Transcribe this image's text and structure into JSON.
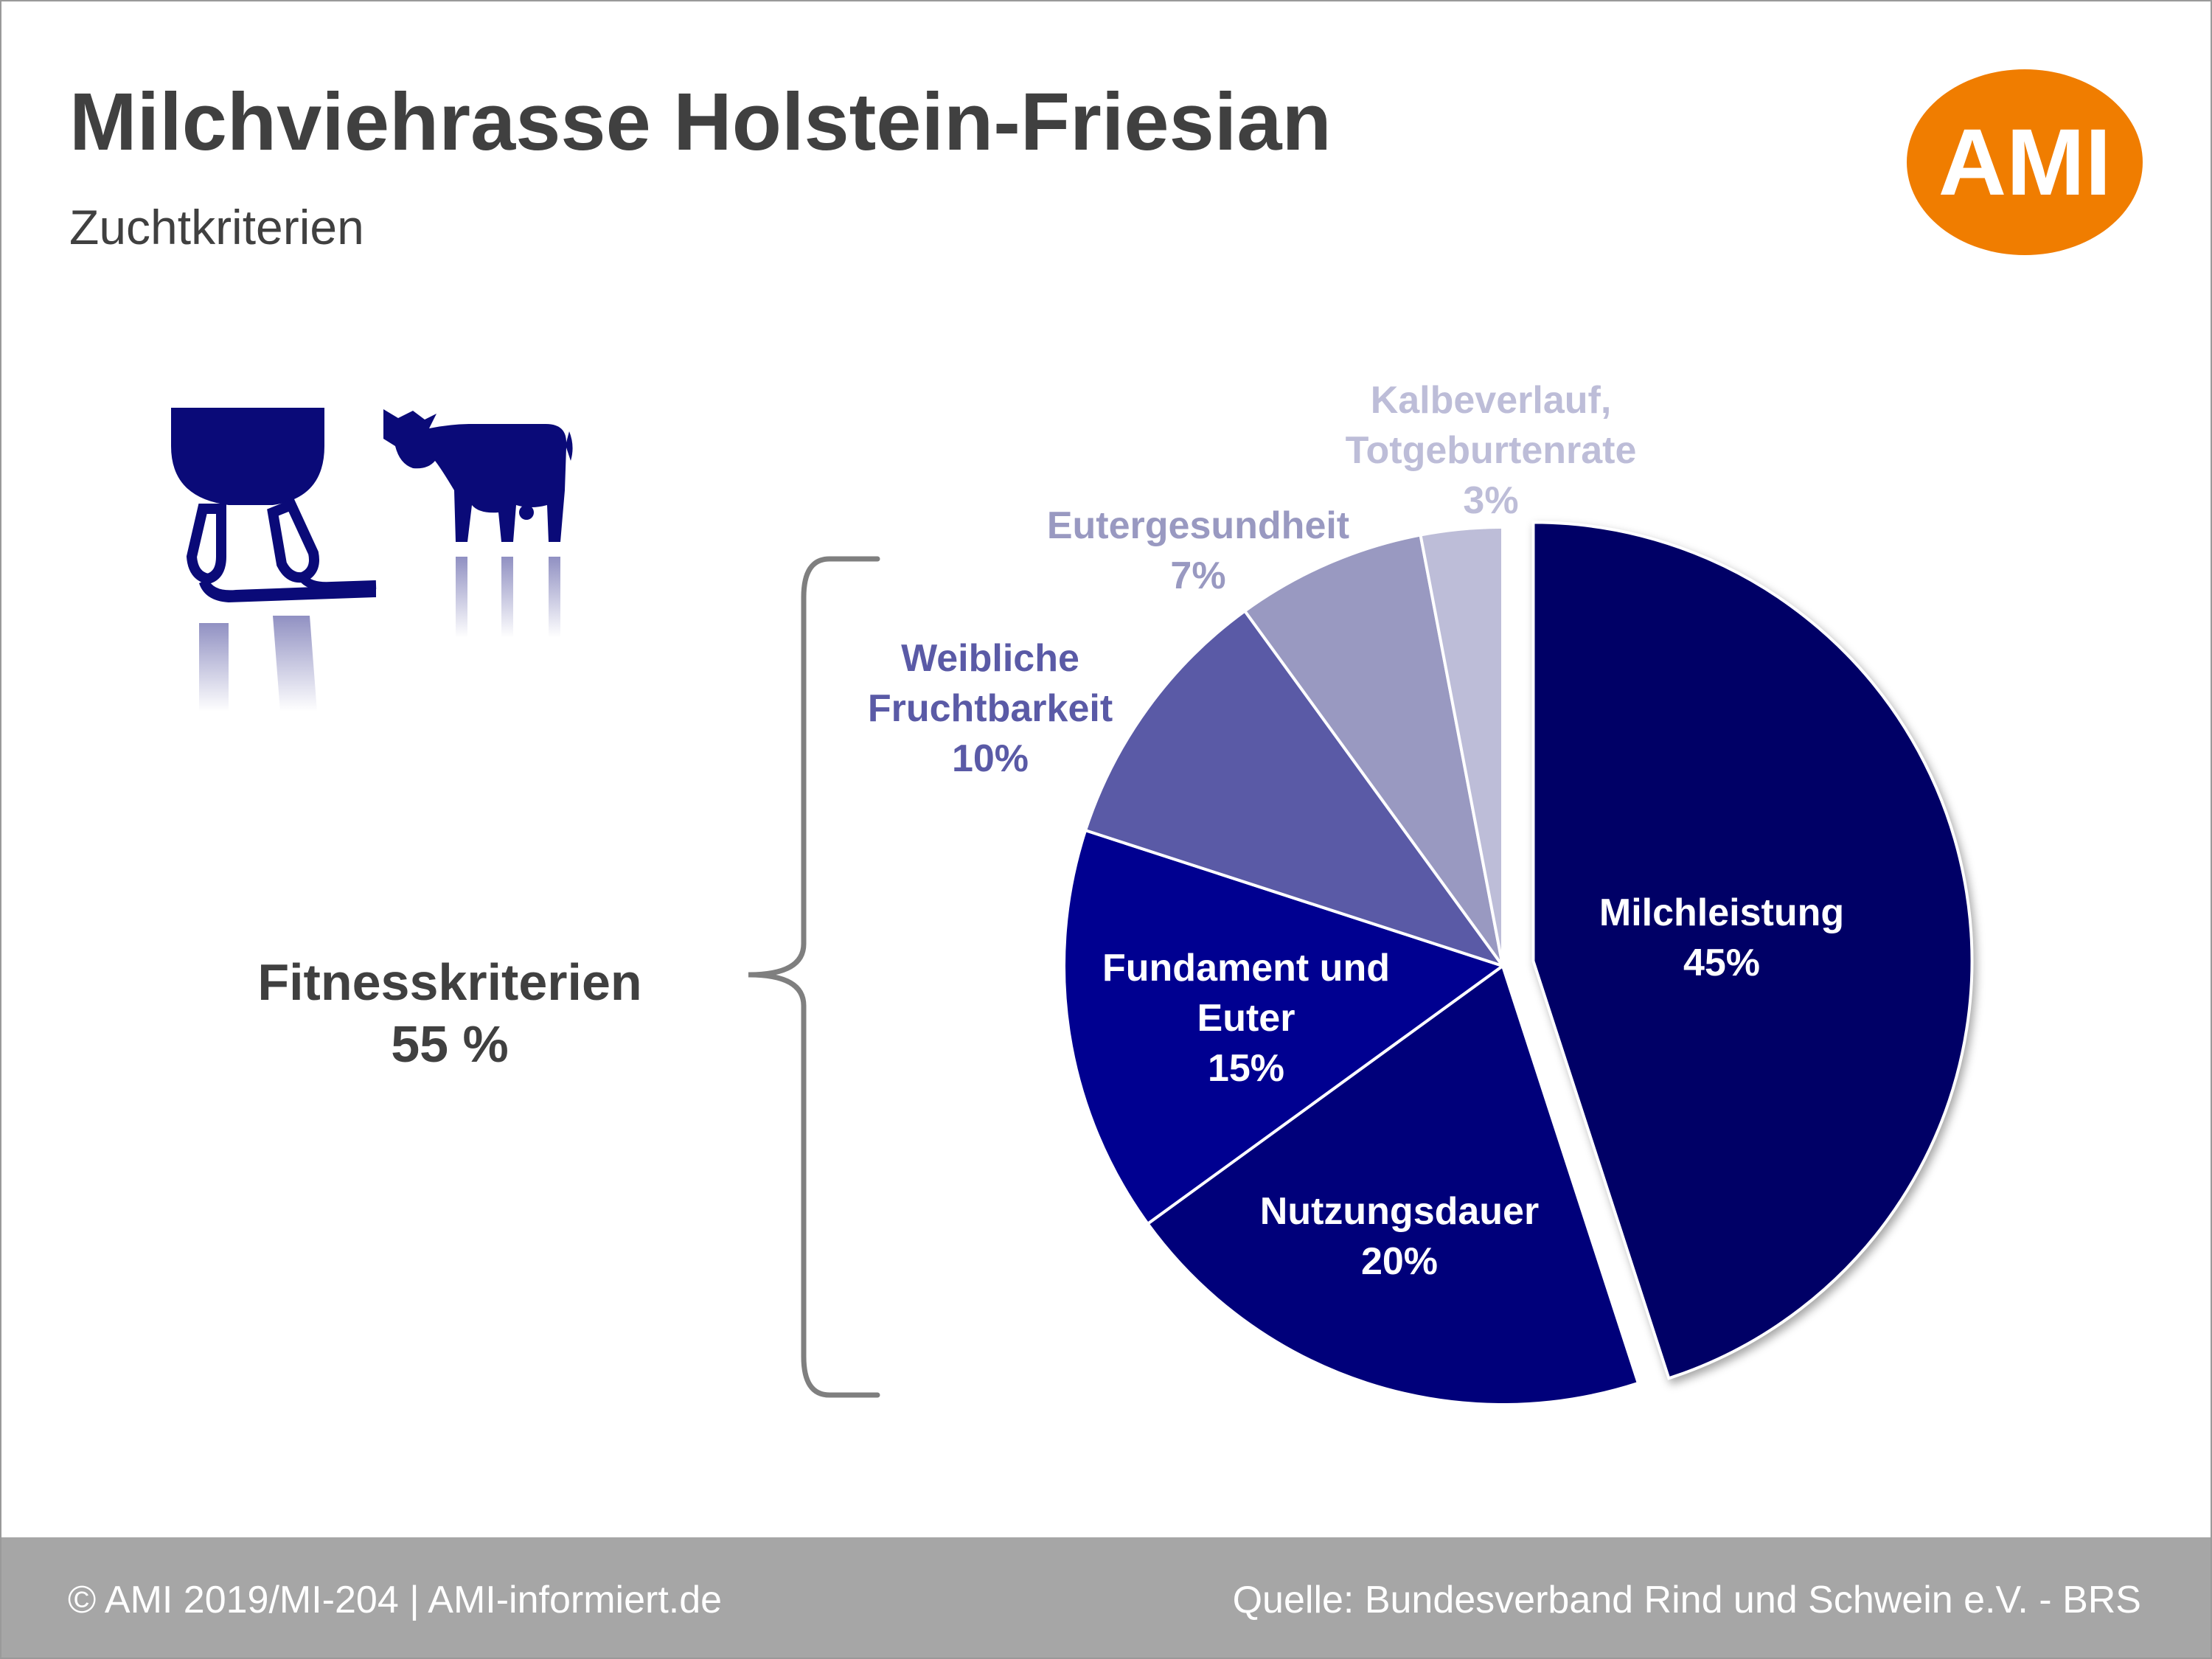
{
  "header": {
    "title": "Milchviehrasse Holstein-Friesian",
    "subtitle": "Zuchtkriterien",
    "logo_text": "AMI"
  },
  "bracket_label": {
    "line1": "Fitnesskriterien",
    "line2": "55 %"
  },
  "footer": {
    "left": "© AMI 2019/MI-204 | AMI-informiert.de",
    "right": "Quelle: Bundesverband Rind und Schwein e.V. - BRS"
  },
  "colors": {
    "logo": "#f07d00",
    "text": "#404040",
    "footer_bg": "#a6a6a6",
    "icon": "#0a0a78"
  },
  "chart_data": {
    "type": "pie",
    "title": "Zuchtkriterien",
    "unit": "%",
    "categories": [
      {
        "name": "Milchleistung",
        "value": 45,
        "lines": [
          "Milchleistung",
          "45%"
        ],
        "color": "#000066",
        "label_color": "#ffffff",
        "exploded": true
      },
      {
        "name": "Nutzungsdauer",
        "value": 20,
        "lines": [
          "Nutzungsdauer",
          "20%"
        ],
        "color": "#00007a",
        "label_color": "#ffffff",
        "exploded": false
      },
      {
        "name": "Fundament und Euter",
        "value": 15,
        "lines": [
          "Fundament und",
          "Euter",
          "15%"
        ],
        "color": "#000090",
        "label_color": "#ffffff",
        "exploded": false
      },
      {
        "name": "Weibliche Fruchtbarkeit",
        "value": 10,
        "lines": [
          "Weibliche",
          "Fruchtbarkeit",
          "10%"
        ],
        "color": "#5a5aa6",
        "label_color": "#5a5aa6",
        "exploded": false
      },
      {
        "name": "Eutergesundheit",
        "value": 7,
        "lines": [
          "Eutergesundheit",
          "7%"
        ],
        "color": "#9999c1",
        "label_color": "#9999c1",
        "exploded": false
      },
      {
        "name": "Kalbeverlauf, Totgeburtenrate",
        "value": 3,
        "lines": [
          "Kalbeverlauf,",
          "Totgeburtenrate",
          "3%"
        ],
        "color": "#bdbdd8",
        "label_color": "#bdbdd8",
        "exploded": false
      }
    ]
  }
}
